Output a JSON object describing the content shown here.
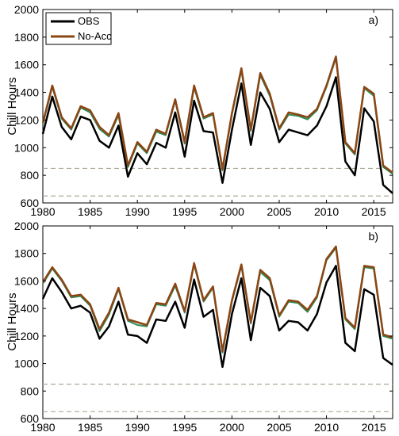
{
  "chart_data": [
    {
      "type": "line",
      "panel_label": "a)",
      "ylabel": "Chill Hours",
      "xlim": [
        1980,
        2017
      ],
      "ylim": [
        600,
        2000
      ],
      "xticks": [
        1980,
        1985,
        1990,
        1995,
        2000,
        2005,
        2010,
        2015
      ],
      "yticks": [
        600,
        800,
        1000,
        1200,
        1400,
        1600,
        1800,
        2000
      ],
      "grid": false,
      "legend": {
        "placement": "top-left",
        "entries": [
          "OBS",
          "No-Acc"
        ]
      },
      "reference_lines": [
        650,
        850
      ],
      "x": [
        1980,
        1981,
        1982,
        1983,
        1984,
        1985,
        1986,
        1987,
        1988,
        1989,
        1990,
        1991,
        1992,
        1993,
        1994,
        1995,
        1996,
        1997,
        1998,
        1999,
        2000,
        2001,
        2002,
        2003,
        2004,
        2005,
        2006,
        2007,
        2008,
        2009,
        2010,
        2011,
        2012,
        2013,
        2014,
        2015,
        2016,
        2017
      ],
      "series": [
        {
          "name": "OBS",
          "color": "#000000",
          "values": [
            1100,
            1370,
            1150,
            1060,
            1225,
            1200,
            1050,
            1000,
            1160,
            790,
            960,
            880,
            1035,
            1000,
            1255,
            935,
            1340,
            1120,
            1110,
            745,
            1130,
            1465,
            1020,
            1400,
            1280,
            1040,
            1130,
            1110,
            1090,
            1160,
            1300,
            1510,
            900,
            800,
            1285,
            1190,
            730,
            670
          ]
        },
        {
          "name": "No-Acc",
          "color": "#8b4513",
          "values": [
            1180,
            1450,
            1220,
            1140,
            1300,
            1270,
            1150,
            1090,
            1250,
            870,
            1040,
            970,
            1130,
            1100,
            1350,
            1040,
            1450,
            1220,
            1250,
            845,
            1250,
            1575,
            1130,
            1540,
            1390,
            1140,
            1255,
            1240,
            1220,
            1280,
            1450,
            1660,
            1040,
            960,
            1440,
            1390,
            870,
            820
          ]
        },
        {
          "name": "",
          "color": "#2e8b57",
          "values": [
            1170,
            1440,
            1210,
            1130,
            1290,
            1255,
            1135,
            1080,
            1235,
            860,
            1030,
            960,
            1115,
            1090,
            1340,
            1030,
            1435,
            1210,
            1240,
            835,
            1240,
            1560,
            1120,
            1525,
            1375,
            1130,
            1240,
            1230,
            1205,
            1270,
            1440,
            1650,
            1030,
            950,
            1430,
            1375,
            860,
            810
          ]
        }
      ]
    },
    {
      "type": "line",
      "panel_label": "b)",
      "ylabel": "Chill Hours",
      "xlim": [
        1980,
        2017
      ],
      "ylim": [
        600,
        2000
      ],
      "xticks": [
        1980,
        1985,
        1990,
        1995,
        2000,
        2005,
        2010,
        2015
      ],
      "yticks": [
        600,
        800,
        1000,
        1200,
        1400,
        1600,
        1800,
        2000
      ],
      "grid": false,
      "reference_lines": [
        650,
        850
      ],
      "x": [
        1980,
        1981,
        1982,
        1983,
        1984,
        1985,
        1986,
        1987,
        1988,
        1989,
        1990,
        1991,
        1992,
        1993,
        1994,
        1995,
        1996,
        1997,
        1998,
        1999,
        2000,
        2001,
        2002,
        2003,
        2004,
        2005,
        2006,
        2007,
        2008,
        2009,
        2010,
        2011,
        2012,
        2013,
        2014,
        2015,
        2016,
        2017
      ],
      "series": [
        {
          "name": "OBS",
          "color": "#000000",
          "values": [
            1470,
            1620,
            1520,
            1400,
            1420,
            1370,
            1180,
            1270,
            1450,
            1210,
            1200,
            1150,
            1320,
            1310,
            1450,
            1260,
            1610,
            1340,
            1390,
            975,
            1360,
            1620,
            1170,
            1550,
            1490,
            1240,
            1310,
            1300,
            1240,
            1360,
            1590,
            1710,
            1150,
            1090,
            1540,
            1500,
            1040,
            990
          ]
        },
        {
          "name": "No-Acc",
          "color": "#8b4513",
          "values": [
            1590,
            1700,
            1610,
            1490,
            1500,
            1430,
            1250,
            1370,
            1550,
            1320,
            1300,
            1280,
            1440,
            1430,
            1580,
            1380,
            1730,
            1460,
            1560,
            1090,
            1460,
            1720,
            1300,
            1680,
            1620,
            1350,
            1460,
            1450,
            1390,
            1490,
            1760,
            1850,
            1330,
            1260,
            1710,
            1700,
            1210,
            1190
          ]
        },
        {
          "name": "",
          "color": "#2e8b57",
          "values": [
            1580,
            1690,
            1600,
            1480,
            1490,
            1420,
            1235,
            1355,
            1540,
            1310,
            1280,
            1270,
            1430,
            1420,
            1565,
            1370,
            1720,
            1450,
            1550,
            1080,
            1450,
            1710,
            1290,
            1665,
            1605,
            1340,
            1450,
            1440,
            1375,
            1480,
            1750,
            1840,
            1320,
            1250,
            1700,
            1690,
            1200,
            1180
          ]
        }
      ]
    }
  ]
}
